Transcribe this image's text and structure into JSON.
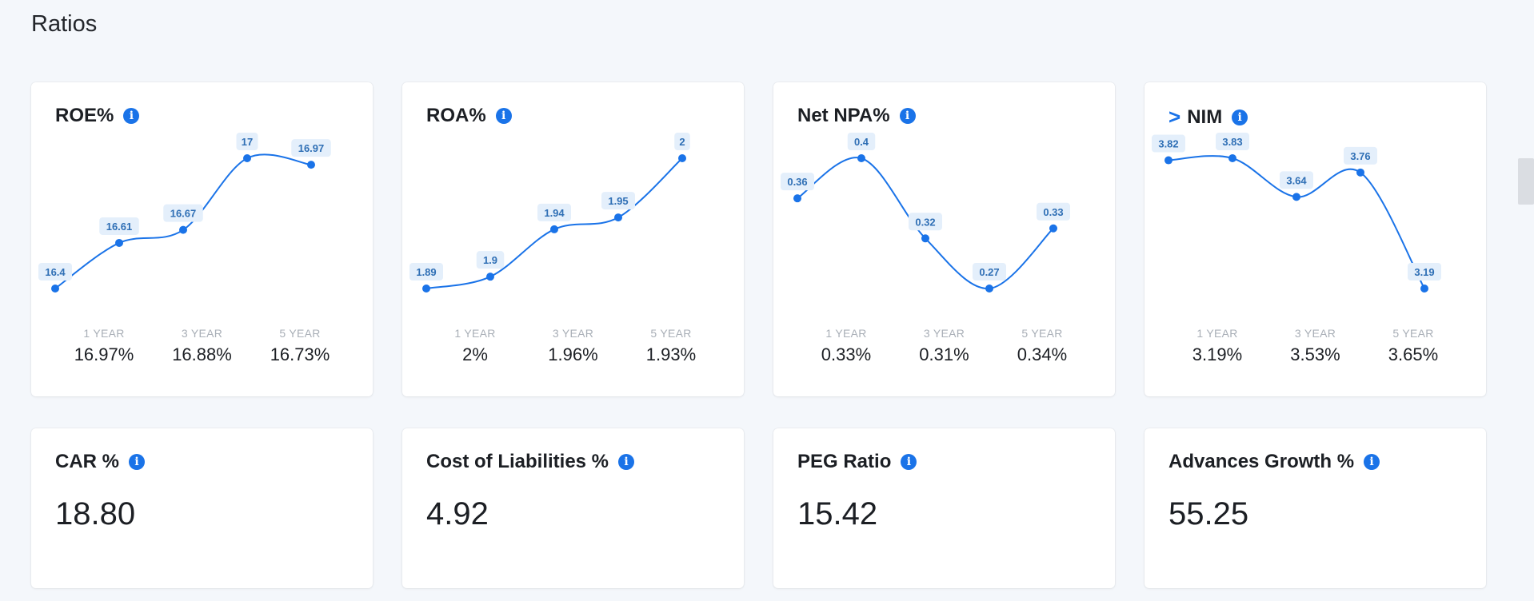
{
  "section": {
    "title": "Ratios"
  },
  "colors": {
    "accent": "#1a73e8",
    "line": "#1a73e8",
    "label_bg": "#e4effb"
  },
  "icons": {
    "info": "info-icon",
    "expand": "caret-right-icon"
  },
  "ratio_cards": [
    {
      "title": "ROE%",
      "periods": [
        {
          "label": "1 YEAR",
          "value": "16.97%"
        },
        {
          "label": "3 YEAR",
          "value": "16.88%"
        },
        {
          "label": "5 YEAR",
          "value": "16.73%"
        }
      ],
      "chart_data": {
        "type": "line",
        "values": [
          16.4,
          16.61,
          16.67,
          17,
          16.97
        ],
        "labels": [
          "16.4",
          "16.61",
          "16.67",
          "17",
          "16.97"
        ]
      }
    },
    {
      "title": "ROA%",
      "periods": [
        {
          "label": "1 YEAR",
          "value": "2%"
        },
        {
          "label": "3 YEAR",
          "value": "1.96%"
        },
        {
          "label": "5 YEAR",
          "value": "1.93%"
        }
      ],
      "chart_data": {
        "type": "line",
        "values": [
          1.89,
          1.9,
          1.94,
          1.95,
          2
        ],
        "labels": [
          "1.89",
          "1.9",
          "1.94",
          "1.95",
          "2"
        ]
      }
    },
    {
      "title": "Net NPA%",
      "periods": [
        {
          "label": "1 YEAR",
          "value": "0.33%"
        },
        {
          "label": "3 YEAR",
          "value": "0.31%"
        },
        {
          "label": "5 YEAR",
          "value": "0.34%"
        }
      ],
      "chart_data": {
        "type": "line",
        "values": [
          0.36,
          0.4,
          0.32,
          0.27,
          0.33
        ],
        "labels": [
          "0.36",
          "0.4",
          "0.32",
          "0.27",
          "0.33"
        ]
      }
    },
    {
      "title": "NIM",
      "expand_glyph": ">",
      "periods": [
        {
          "label": "1 YEAR",
          "value": "3.19%"
        },
        {
          "label": "3 YEAR",
          "value": "3.53%"
        },
        {
          "label": "5 YEAR",
          "value": "3.65%"
        }
      ],
      "chart_data": {
        "type": "line",
        "values": [
          3.82,
          3.83,
          3.64,
          3.76,
          3.19
        ],
        "labels": [
          "3.82",
          "3.83",
          "3.64",
          "3.76",
          "3.19"
        ]
      }
    }
  ],
  "value_cards": [
    {
      "title": "CAR %",
      "value": "18.80"
    },
    {
      "title": "Cost of Liabilities %",
      "value": "4.92"
    },
    {
      "title": "PEG Ratio",
      "value": "15.42"
    },
    {
      "title": "Advances Growth %",
      "value": "55.25"
    }
  ]
}
